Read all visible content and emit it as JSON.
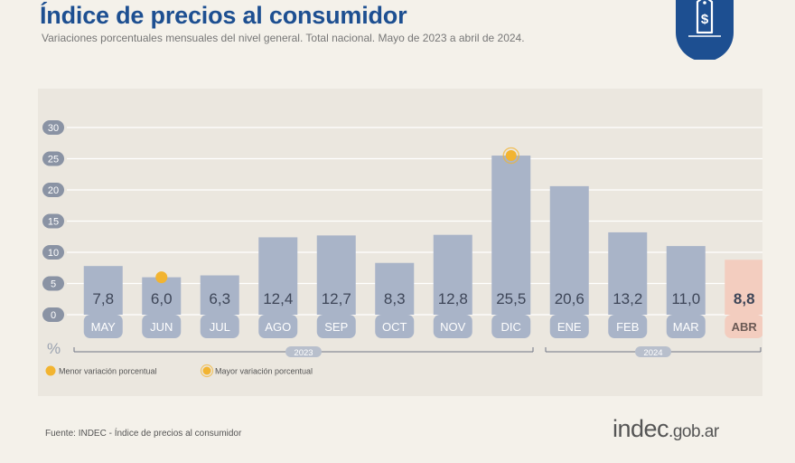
{
  "header": {
    "title": "Índice de precios al consumidor",
    "subtitle": "Variaciones porcentuales mensuales del nivel general. Total nacional. Mayo de 2023 a abril de 2024.",
    "badge_icon": "price-tag-dollar-icon"
  },
  "chart_data": {
    "type": "bar",
    "categories": [
      "MAY",
      "JUN",
      "JUL",
      "AGO",
      "SEP",
      "OCT",
      "NOV",
      "DIC",
      "ENE",
      "FEB",
      "MAR",
      "ABR"
    ],
    "values": [
      7.8,
      6.0,
      6.3,
      12.4,
      12.7,
      8.3,
      12.8,
      25.5,
      20.6,
      13.2,
      11.0,
      8.8
    ],
    "value_labels": [
      "7,8",
      "6,0",
      "6,3",
      "12,4",
      "12,7",
      "8,3",
      "12,8",
      "25,5",
      "20,6",
      "13,2",
      "11,0",
      "8,8"
    ],
    "highlighted_category": "ABR",
    "min_marker_category": "JUN",
    "max_marker_category": "DIC",
    "ylim": [
      0,
      30
    ],
    "yticks": [
      0,
      5,
      10,
      15,
      20,
      25,
      30
    ],
    "ylabel": "%",
    "year_groups": [
      {
        "label": "2023",
        "from": "MAY",
        "to": "DIC"
      },
      {
        "label": "2024",
        "from": "ENE",
        "to": "ABR"
      }
    ],
    "legend": {
      "min_label": "Menor variación porcentual",
      "max_label": "Mayor variación porcentual",
      "placement": "bottom-left"
    },
    "grid": true,
    "colors": {
      "bar": "#a9b4c8",
      "bar_highlight": "#f3cdbf",
      "category_pill": "#a9b4c8",
      "category_pill_highlight": "#f3cdbf",
      "value_text": "#3e4658",
      "marker": "#f2b431",
      "grid": "#ffffff"
    }
  },
  "footer": {
    "source": "Fuente: INDEC - Índice de precios al consumidor",
    "logo_main": "indec",
    "logo_suffix": ".gob.ar"
  }
}
